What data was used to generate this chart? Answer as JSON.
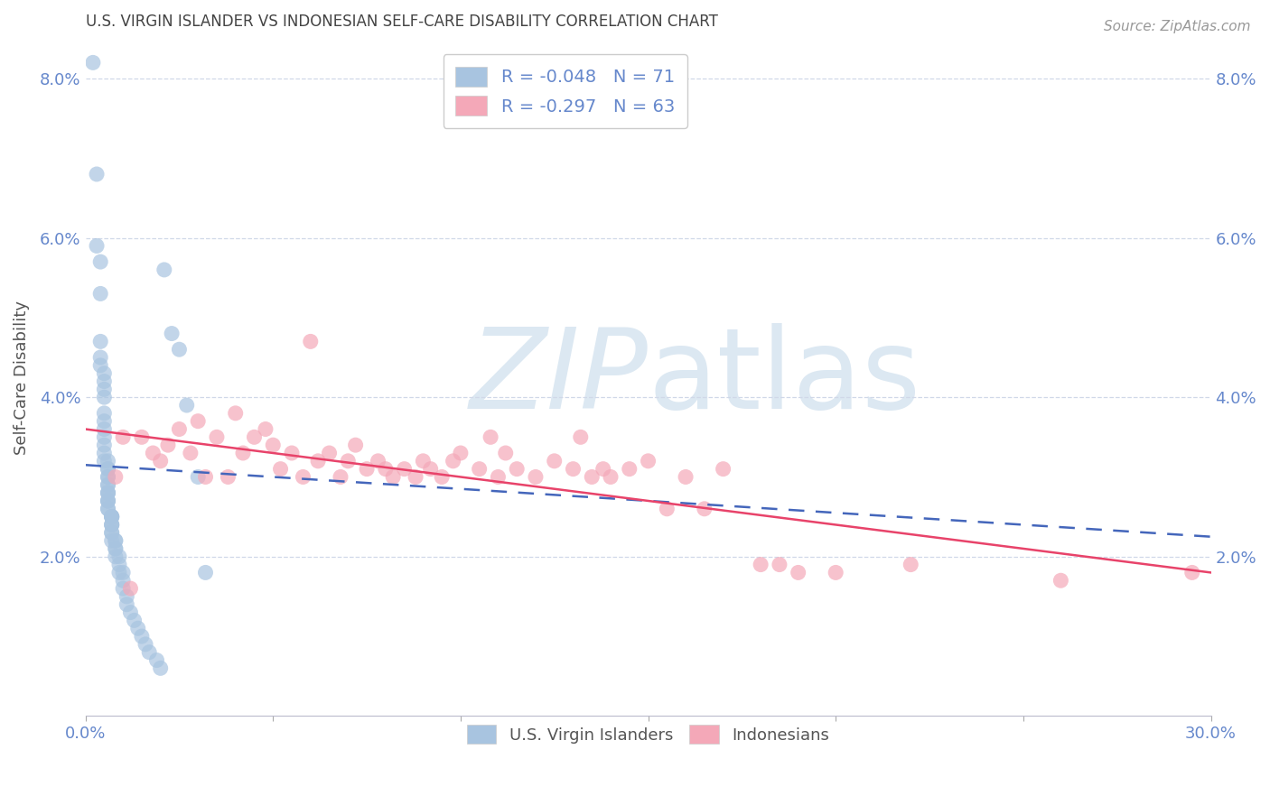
{
  "title": "U.S. VIRGIN ISLANDER VS INDONESIAN SELF-CARE DISABILITY CORRELATION CHART",
  "source": "Source: ZipAtlas.com",
  "ylabel": "Self-Care Disability",
  "xmin": 0.0,
  "xmax": 0.3,
  "ymin": 0.0,
  "ymax": 0.085,
  "yticks": [
    0.02,
    0.04,
    0.06,
    0.08
  ],
  "ytick_labels": [
    "2.0%",
    "4.0%",
    "6.0%",
    "8.0%"
  ],
  "xticks": [
    0.0,
    0.05,
    0.1,
    0.15,
    0.2,
    0.25,
    0.3
  ],
  "legend_blue_R": "R = -0.048",
  "legend_blue_N": "N = 71",
  "legend_pink_R": "R = -0.297",
  "legend_pink_N": "N = 63",
  "blue_color": "#a8c4e0",
  "pink_color": "#f4a8b8",
  "blue_line_color": "#4466bb",
  "pink_line_color": "#e8436a",
  "tick_color": "#6688cc",
  "grid_color": "#d0d8e8",
  "background_color": "#ffffff",
  "watermark_color": "#dce8f2",
  "blue_scatter_x": [
    0.002,
    0.003,
    0.003,
    0.004,
    0.004,
    0.004,
    0.004,
    0.004,
    0.005,
    0.005,
    0.005,
    0.005,
    0.005,
    0.005,
    0.005,
    0.005,
    0.005,
    0.005,
    0.005,
    0.006,
    0.006,
    0.006,
    0.006,
    0.006,
    0.006,
    0.006,
    0.006,
    0.006,
    0.006,
    0.006,
    0.006,
    0.006,
    0.006,
    0.006,
    0.007,
    0.007,
    0.007,
    0.007,
    0.007,
    0.007,
    0.007,
    0.007,
    0.007,
    0.007,
    0.008,
    0.008,
    0.008,
    0.008,
    0.008,
    0.009,
    0.009,
    0.009,
    0.01,
    0.01,
    0.01,
    0.011,
    0.011,
    0.012,
    0.013,
    0.014,
    0.015,
    0.016,
    0.017,
    0.019,
    0.02,
    0.021,
    0.023,
    0.025,
    0.027,
    0.03,
    0.032
  ],
  "blue_scatter_y": [
    0.082,
    0.068,
    0.059,
    0.057,
    0.053,
    0.047,
    0.045,
    0.044,
    0.043,
    0.042,
    0.041,
    0.04,
    0.038,
    0.037,
    0.036,
    0.035,
    0.034,
    0.033,
    0.032,
    0.032,
    0.031,
    0.031,
    0.03,
    0.03,
    0.029,
    0.029,
    0.028,
    0.028,
    0.028,
    0.027,
    0.027,
    0.027,
    0.026,
    0.026,
    0.025,
    0.025,
    0.025,
    0.025,
    0.024,
    0.024,
    0.024,
    0.023,
    0.023,
    0.022,
    0.022,
    0.022,
    0.021,
    0.021,
    0.02,
    0.02,
    0.019,
    0.018,
    0.018,
    0.017,
    0.016,
    0.015,
    0.014,
    0.013,
    0.012,
    0.011,
    0.01,
    0.009,
    0.008,
    0.007,
    0.006,
    0.056,
    0.048,
    0.046,
    0.039,
    0.03,
    0.018
  ],
  "pink_scatter_x": [
    0.008,
    0.01,
    0.012,
    0.015,
    0.018,
    0.02,
    0.022,
    0.025,
    0.028,
    0.03,
    0.032,
    0.035,
    0.038,
    0.04,
    0.042,
    0.045,
    0.048,
    0.05,
    0.052,
    0.055,
    0.058,
    0.06,
    0.062,
    0.065,
    0.068,
    0.07,
    0.072,
    0.075,
    0.078,
    0.08,
    0.082,
    0.085,
    0.088,
    0.09,
    0.092,
    0.095,
    0.098,
    0.1,
    0.105,
    0.108,
    0.11,
    0.112,
    0.115,
    0.12,
    0.125,
    0.13,
    0.132,
    0.135,
    0.138,
    0.14,
    0.145,
    0.15,
    0.155,
    0.16,
    0.165,
    0.17,
    0.18,
    0.185,
    0.19,
    0.2,
    0.22,
    0.26,
    0.295
  ],
  "pink_scatter_y": [
    0.03,
    0.035,
    0.016,
    0.035,
    0.033,
    0.032,
    0.034,
    0.036,
    0.033,
    0.037,
    0.03,
    0.035,
    0.03,
    0.038,
    0.033,
    0.035,
    0.036,
    0.034,
    0.031,
    0.033,
    0.03,
    0.047,
    0.032,
    0.033,
    0.03,
    0.032,
    0.034,
    0.031,
    0.032,
    0.031,
    0.03,
    0.031,
    0.03,
    0.032,
    0.031,
    0.03,
    0.032,
    0.033,
    0.031,
    0.035,
    0.03,
    0.033,
    0.031,
    0.03,
    0.032,
    0.031,
    0.035,
    0.03,
    0.031,
    0.03,
    0.031,
    0.032,
    0.026,
    0.03,
    0.026,
    0.031,
    0.019,
    0.019,
    0.018,
    0.018,
    0.019,
    0.017,
    0.018
  ],
  "blue_line_y_start": 0.0315,
  "blue_line_y_end": 0.0225,
  "pink_line_y_start": 0.036,
  "pink_line_y_end": 0.018
}
